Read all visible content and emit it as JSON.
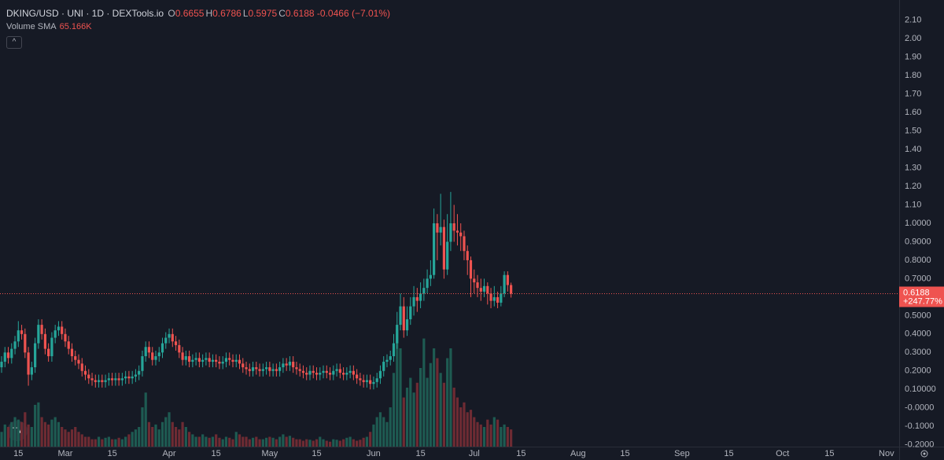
{
  "chart_data": {
    "type": "candlestick",
    "title": "DKING/USD · UNI · 1D · DEXTools.io",
    "ohlc_legend": [
      {
        "label": "O",
        "value": 0.6655
      },
      {
        "label": "H",
        "value": 0.6786
      },
      {
        "label": "L",
        "value": 0.5975
      },
      {
        "label": "C",
        "value": 0.6188
      }
    ],
    "change": -0.0466,
    "change_pct": {
      "value": -7.01,
      "label": "(−7.01%)"
    },
    "indicator": {
      "name": "Volume SMA",
      "value": {
        "value": 65166,
        "label": "65.166K"
      }
    },
    "last_price": 0.6188,
    "last_change_pct": {
      "value": 247.77,
      "label": "+247.77%"
    },
    "up_color": "#26a69a",
    "down_color": "#ef5350",
    "volume_up_color": "#1e5b52",
    "volume_down_color": "#6e2b33",
    "xlim": [
      -0.47,
      267.8
    ],
    "xticks": [
      {
        "value": 5,
        "label": "15"
      },
      {
        "value": 19,
        "label": "Mar"
      },
      {
        "value": 33,
        "label": "15"
      },
      {
        "value": 50,
        "label": "Apr"
      },
      {
        "value": 64,
        "label": "15"
      },
      {
        "value": 80,
        "label": "May"
      },
      {
        "value": 94,
        "label": "15"
      },
      {
        "value": 111,
        "label": "Jun"
      },
      {
        "value": 125,
        "label": "15"
      },
      {
        "value": 141,
        "label": "Jul"
      },
      {
        "value": 155,
        "label": "15"
      },
      {
        "value": 172,
        "label": "Aug"
      },
      {
        "value": 186,
        "label": "15"
      },
      {
        "value": 203,
        "label": "Sep"
      },
      {
        "value": 217,
        "label": "15"
      },
      {
        "value": 233,
        "label": "Oct"
      },
      {
        "value": 247,
        "label": "15"
      },
      {
        "value": 264,
        "label": "Nov"
      }
    ],
    "ylim": [
      -0.21,
      2.21
    ],
    "yticks": [
      {
        "value": 2.1,
        "label": "2.10"
      },
      {
        "value": 2.0,
        "label": "2.00"
      },
      {
        "value": 1.9,
        "label": "1.90"
      },
      {
        "value": 1.8,
        "label": "1.80"
      },
      {
        "value": 1.7,
        "label": "1.70"
      },
      {
        "value": 1.6,
        "label": "1.60"
      },
      {
        "value": 1.5,
        "label": "1.50"
      },
      {
        "value": 1.4,
        "label": "1.40"
      },
      {
        "value": 1.3,
        "label": "1.30"
      },
      {
        "value": 1.2,
        "label": "1.20"
      },
      {
        "value": 1.1,
        "label": "1.10"
      },
      {
        "value": 1.0,
        "label": "1.0000"
      },
      {
        "value": 0.9,
        "label": "0.9000"
      },
      {
        "value": 0.8,
        "label": "0.8000"
      },
      {
        "value": 0.7,
        "label": "0.7000"
      },
      {
        "value": 0.6,
        "label": "0.6000"
      },
      {
        "value": 0.5,
        "label": "0.5000"
      },
      {
        "value": 0.4,
        "label": "0.4000"
      },
      {
        "value": 0.3,
        "label": "0.3000"
      },
      {
        "value": 0.2,
        "label": "0.2000"
      },
      {
        "value": 0.1,
        "label": "0.10000"
      },
      {
        "value": 0,
        "label": "-0.0000"
      },
      {
        "value": -0.1,
        "label": "-0.1000"
      },
      {
        "value": -0.2,
        "label": "-0.2000"
      }
    ],
    "open": [
      0.22,
      0.25,
      0.3,
      0.27,
      0.32,
      0.36,
      0.42,
      0.4,
      0.3,
      0.18,
      0.22,
      0.35,
      0.45,
      0.4,
      0.32,
      0.28,
      0.38,
      0.42,
      0.44,
      0.4,
      0.36,
      0.32,
      0.28,
      0.26,
      0.24,
      0.2,
      0.18,
      0.16,
      0.15,
      0.14,
      0.15,
      0.14,
      0.15,
      0.16,
      0.15,
      0.16,
      0.15,
      0.16,
      0.17,
      0.16,
      0.17,
      0.18,
      0.2,
      0.28,
      0.33,
      0.3,
      0.26,
      0.28,
      0.3,
      0.35,
      0.38,
      0.4,
      0.36,
      0.34,
      0.3,
      0.26,
      0.28,
      0.25,
      0.26,
      0.27,
      0.25,
      0.26,
      0.27,
      0.25,
      0.26,
      0.25,
      0.24,
      0.25,
      0.27,
      0.26,
      0.25,
      0.26,
      0.24,
      0.22,
      0.21,
      0.2,
      0.22,
      0.21,
      0.2,
      0.21,
      0.22,
      0.2,
      0.21,
      0.2,
      0.22,
      0.24,
      0.23,
      0.25,
      0.22,
      0.21,
      0.2,
      0.19,
      0.18,
      0.2,
      0.19,
      0.18,
      0.19,
      0.2,
      0.19,
      0.18,
      0.2,
      0.21,
      0.19,
      0.18,
      0.19,
      0.2,
      0.18,
      0.16,
      0.15,
      0.14,
      0.15,
      0.13,
      0.14,
      0.16,
      0.2,
      0.25,
      0.26,
      0.28,
      0.35,
      0.45,
      0.55,
      0.42,
      0.48,
      0.55,
      0.6,
      0.58,
      0.62,
      0.65,
      0.7,
      0.72,
      1.0,
      0.95,
      0.98,
      0.75,
      0.9,
      1.0,
      0.96,
      0.95,
      0.93,
      0.85,
      0.8,
      0.7,
      0.68,
      0.65,
      0.63,
      0.66,
      0.62,
      0.58,
      0.6,
      0.57,
      0.62,
      0.72,
      0.6655
    ],
    "high": [
      0.28,
      0.33,
      0.33,
      0.35,
      0.39,
      0.47,
      0.45,
      0.43,
      0.33,
      0.25,
      0.38,
      0.48,
      0.48,
      0.43,
      0.35,
      0.41,
      0.45,
      0.47,
      0.47,
      0.43,
      0.39,
      0.35,
      0.31,
      0.29,
      0.27,
      0.23,
      0.21,
      0.19,
      0.18,
      0.18,
      0.18,
      0.18,
      0.19,
      0.19,
      0.19,
      0.19,
      0.19,
      0.2,
      0.2,
      0.2,
      0.21,
      0.23,
      0.31,
      0.36,
      0.36,
      0.33,
      0.31,
      0.33,
      0.38,
      0.41,
      0.43,
      0.43,
      0.39,
      0.37,
      0.33,
      0.31,
      0.31,
      0.29,
      0.3,
      0.3,
      0.29,
      0.3,
      0.3,
      0.29,
      0.29,
      0.28,
      0.28,
      0.3,
      0.3,
      0.29,
      0.29,
      0.29,
      0.27,
      0.25,
      0.24,
      0.25,
      0.25,
      0.24,
      0.24,
      0.25,
      0.25,
      0.24,
      0.24,
      0.25,
      0.27,
      0.27,
      0.28,
      0.28,
      0.25,
      0.24,
      0.23,
      0.22,
      0.23,
      0.23,
      0.22,
      0.22,
      0.23,
      0.23,
      0.22,
      0.23,
      0.24,
      0.24,
      0.22,
      0.22,
      0.23,
      0.23,
      0.21,
      0.19,
      0.18,
      0.18,
      0.18,
      0.17,
      0.19,
      0.23,
      0.28,
      0.29,
      0.31,
      0.4,
      0.52,
      0.62,
      0.6,
      0.55,
      0.6,
      0.66,
      0.65,
      0.68,
      0.7,
      0.75,
      0.8,
      1.08,
      1.05,
      1.16,
      1.02,
      1.05,
      1.17,
      1.1,
      1.05,
      1.0,
      0.96,
      0.88,
      0.82,
      0.75,
      0.72,
      0.7,
      0.7,
      0.68,
      0.65,
      0.66,
      0.63,
      0.66,
      0.74,
      0.74,
      0.6786
    ],
    "low": [
      0.19,
      0.22,
      0.24,
      0.24,
      0.29,
      0.33,
      0.37,
      0.27,
      0.12,
      0.15,
      0.19,
      0.32,
      0.37,
      0.29,
      0.25,
      0.25,
      0.35,
      0.39,
      0.37,
      0.33,
      0.29,
      0.25,
      0.23,
      0.21,
      0.17,
      0.15,
      0.13,
      0.12,
      0.11,
      0.11,
      0.11,
      0.11,
      0.12,
      0.12,
      0.12,
      0.12,
      0.12,
      0.13,
      0.13,
      0.13,
      0.14,
      0.15,
      0.17,
      0.25,
      0.27,
      0.23,
      0.23,
      0.25,
      0.27,
      0.32,
      0.35,
      0.33,
      0.31,
      0.27,
      0.23,
      0.23,
      0.22,
      0.22,
      0.23,
      0.22,
      0.22,
      0.23,
      0.22,
      0.22,
      0.22,
      0.21,
      0.21,
      0.22,
      0.23,
      0.22,
      0.22,
      0.21,
      0.19,
      0.18,
      0.17,
      0.17,
      0.18,
      0.17,
      0.17,
      0.18,
      0.17,
      0.17,
      0.17,
      0.17,
      0.19,
      0.2,
      0.2,
      0.19,
      0.18,
      0.17,
      0.16,
      0.15,
      0.15,
      0.16,
      0.15,
      0.15,
      0.16,
      0.16,
      0.15,
      0.15,
      0.17,
      0.16,
      0.15,
      0.15,
      0.16,
      0.15,
      0.13,
      0.12,
      0.11,
      0.11,
      0.1,
      0.1,
      0.11,
      0.13,
      0.17,
      0.22,
      0.23,
      0.25,
      0.32,
      0.42,
      0.38,
      0.39,
      0.45,
      0.5,
      0.52,
      0.54,
      0.58,
      0.62,
      0.66,
      0.7,
      0.8,
      0.88,
      0.7,
      0.72,
      0.85,
      0.9,
      0.88,
      0.85,
      0.8,
      0.72,
      0.6,
      0.62,
      0.6,
      0.58,
      0.6,
      0.56,
      0.54,
      0.55,
      0.54,
      0.55,
      0.6,
      0.63,
      0.5975
    ],
    "close": [
      0.25,
      0.3,
      0.27,
      0.32,
      0.36,
      0.42,
      0.4,
      0.3,
      0.18,
      0.22,
      0.35,
      0.45,
      0.4,
      0.32,
      0.28,
      0.38,
      0.42,
      0.44,
      0.4,
      0.36,
      0.32,
      0.28,
      0.26,
      0.24,
      0.2,
      0.18,
      0.16,
      0.15,
      0.14,
      0.15,
      0.14,
      0.15,
      0.16,
      0.15,
      0.16,
      0.15,
      0.16,
      0.17,
      0.16,
      0.17,
      0.18,
      0.2,
      0.28,
      0.33,
      0.3,
      0.26,
      0.28,
      0.3,
      0.35,
      0.38,
      0.4,
      0.36,
      0.34,
      0.3,
      0.26,
      0.28,
      0.25,
      0.26,
      0.27,
      0.25,
      0.26,
      0.27,
      0.25,
      0.26,
      0.25,
      0.24,
      0.25,
      0.27,
      0.26,
      0.25,
      0.26,
      0.24,
      0.22,
      0.21,
      0.2,
      0.22,
      0.21,
      0.2,
      0.21,
      0.22,
      0.2,
      0.21,
      0.2,
      0.22,
      0.24,
      0.23,
      0.25,
      0.22,
      0.21,
      0.2,
      0.19,
      0.18,
      0.2,
      0.19,
      0.18,
      0.19,
      0.2,
      0.19,
      0.18,
      0.2,
      0.21,
      0.19,
      0.18,
      0.19,
      0.2,
      0.18,
      0.16,
      0.15,
      0.14,
      0.15,
      0.13,
      0.14,
      0.16,
      0.2,
      0.25,
      0.26,
      0.28,
      0.35,
      0.45,
      0.55,
      0.42,
      0.48,
      0.55,
      0.6,
      0.58,
      0.62,
      0.65,
      0.7,
      0.72,
      1.0,
      0.95,
      0.98,
      0.75,
      0.9,
      1.0,
      0.96,
      0.95,
      0.93,
      0.85,
      0.8,
      0.7,
      0.68,
      0.65,
      0.63,
      0.66,
      0.62,
      0.58,
      0.6,
      0.57,
      0.62,
      0.72,
      0.6655,
      0.6188
    ],
    "volume": [
      30000,
      45000,
      40000,
      50000,
      60000,
      55000,
      50000,
      70000,
      45000,
      40000,
      85000,
      90000,
      60000,
      50000,
      45000,
      55000,
      60000,
      50000,
      40000,
      35000,
      30000,
      35000,
      40000,
      30000,
      25000,
      20000,
      20000,
      15000,
      15000,
      20000,
      15000,
      18000,
      20000,
      15000,
      15000,
      18000,
      15000,
      20000,
      25000,
      30000,
      35000,
      40000,
      80000,
      110000,
      50000,
      40000,
      45000,
      35000,
      50000,
      60000,
      70000,
      50000,
      40000,
      35000,
      50000,
      40000,
      30000,
      25000,
      20000,
      20000,
      25000,
      20000,
      18000,
      20000,
      25000,
      18000,
      15000,
      20000,
      18000,
      15000,
      30000,
      25000,
      20000,
      20000,
      15000,
      18000,
      20000,
      15000,
      15000,
      18000,
      20000,
      18000,
      15000,
      20000,
      25000,
      20000,
      22000,
      18000,
      15000,
      15000,
      12000,
      15000,
      14000,
      12000,
      15000,
      20000,
      15000,
      12000,
      10000,
      15000,
      14000,
      12000,
      15000,
      18000,
      20000,
      15000,
      12000,
      14000,
      18000,
      20000,
      30000,
      45000,
      60000,
      70000,
      60000,
      50000,
      80000,
      150000,
      240000,
      200000,
      100000,
      120000,
      140000,
      110000,
      130000,
      160000,
      220000,
      140000,
      170000,
      200000,
      180000,
      150000,
      130000,
      180000,
      200000,
      120000,
      100000,
      80000,
      90000,
      70000,
      75000,
      60000,
      50000,
      45000,
      40000,
      55000,
      45000,
      60000,
      55000,
      40000,
      45000,
      40000,
      35000
    ]
  }
}
